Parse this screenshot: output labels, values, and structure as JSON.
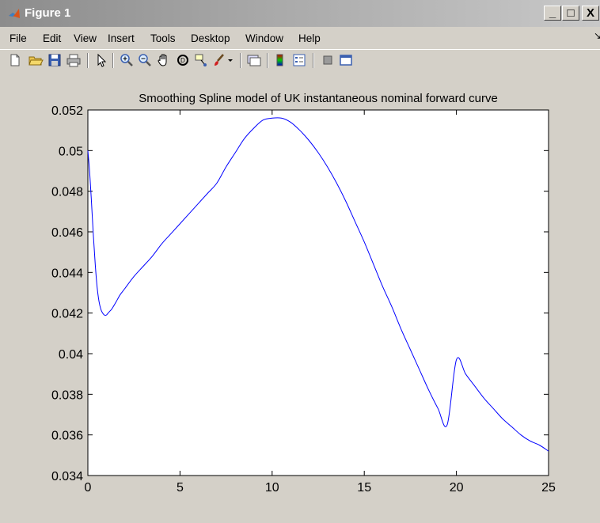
{
  "window": {
    "title": "Figure 1",
    "buttons": {
      "minimize": "_",
      "maximize": "□",
      "close": "X"
    }
  },
  "menu": [
    "File",
    "Edit",
    "View",
    "Insert",
    "Tools",
    "Desktop",
    "Window",
    "Help"
  ],
  "menu_corner": "↘",
  "toolbar": [
    "new-figure-icon",
    "open-file-icon",
    "save-icon",
    "print-icon",
    "arrow-select-icon",
    "zoom-in-icon",
    "zoom-out-icon",
    "pan-hand-icon",
    "rotate-3d-icon",
    "data-cursor-icon",
    "brush-icon",
    "brush-dropdown-icon",
    "link-plot-icon",
    "insert-colorbar-icon",
    "insert-legend-icon",
    "hide-plot-tools-icon",
    "show-plot-tools-icon"
  ],
  "colors": {
    "line": "#0000ff",
    "axes_bg": "#ffffff",
    "figure_bg": "#d4d0c8"
  },
  "chart_data": {
    "type": "line",
    "title": "Smoothing Spline model of UK instantaneous nominal forward curve",
    "xlabel": "",
    "ylabel": "",
    "xlim": [
      0,
      25
    ],
    "ylim": [
      0.034,
      0.052
    ],
    "xticks": [
      "0",
      "5",
      "10",
      "15",
      "20",
      "25"
    ],
    "yticks": [
      "0.034",
      "0.036",
      "0.038",
      "0.04",
      "0.042",
      "0.044",
      "0.046",
      "0.048",
      "0.05",
      "0.052"
    ],
    "grid": false,
    "series": [
      {
        "color": "#0000ff",
        "x": [
          0,
          0.1,
          0.2,
          0.3,
          0.4,
          0.5,
          0.6,
          0.7,
          0.8,
          0.9,
          1.0,
          1.1,
          1.2,
          1.3,
          1.5,
          1.75,
          2,
          2.5,
          3,
          3.5,
          4,
          4.5,
          5,
          5.5,
          6,
          6.5,
          7,
          7.5,
          8,
          8.5,
          9,
          9.5,
          10,
          10.5,
          11,
          11.5,
          12,
          12.5,
          13,
          13.5,
          14,
          14.5,
          15,
          15.5,
          16,
          16.5,
          17,
          17.5,
          18,
          18.5,
          19,
          19.5,
          20,
          20.5,
          21,
          21.5,
          22,
          22.5,
          23,
          23.5,
          24,
          24.5,
          25
        ],
        "y": [
          0.05,
          0.0489,
          0.0474,
          0.0458,
          0.0444,
          0.0433,
          0.0426,
          0.0422,
          0.042,
          0.0419,
          0.0419,
          0.042,
          0.0421,
          0.0422,
          0.0425,
          0.0429,
          0.0432,
          0.0438,
          0.0443,
          0.0448,
          0.0454,
          0.0459,
          0.0464,
          0.0469,
          0.0474,
          0.0479,
          0.0484,
          0.0492,
          0.0499,
          0.0506,
          0.0511,
          0.0515,
          0.0516,
          0.0516,
          0.0514,
          0.051,
          0.0505,
          0.0499,
          0.0492,
          0.0484,
          0.0475,
          0.0465,
          0.0455,
          0.0444,
          0.0433,
          0.0423,
          0.0412,
          0.0402,
          0.0392,
          0.0382,
          0.0373,
          0.0365,
          0.0397,
          0.039,
          0.0384,
          0.0378,
          0.0373,
          0.0368,
          0.0364,
          0.036,
          0.0357,
          0.0355,
          0.0352
        ]
      }
    ]
  }
}
